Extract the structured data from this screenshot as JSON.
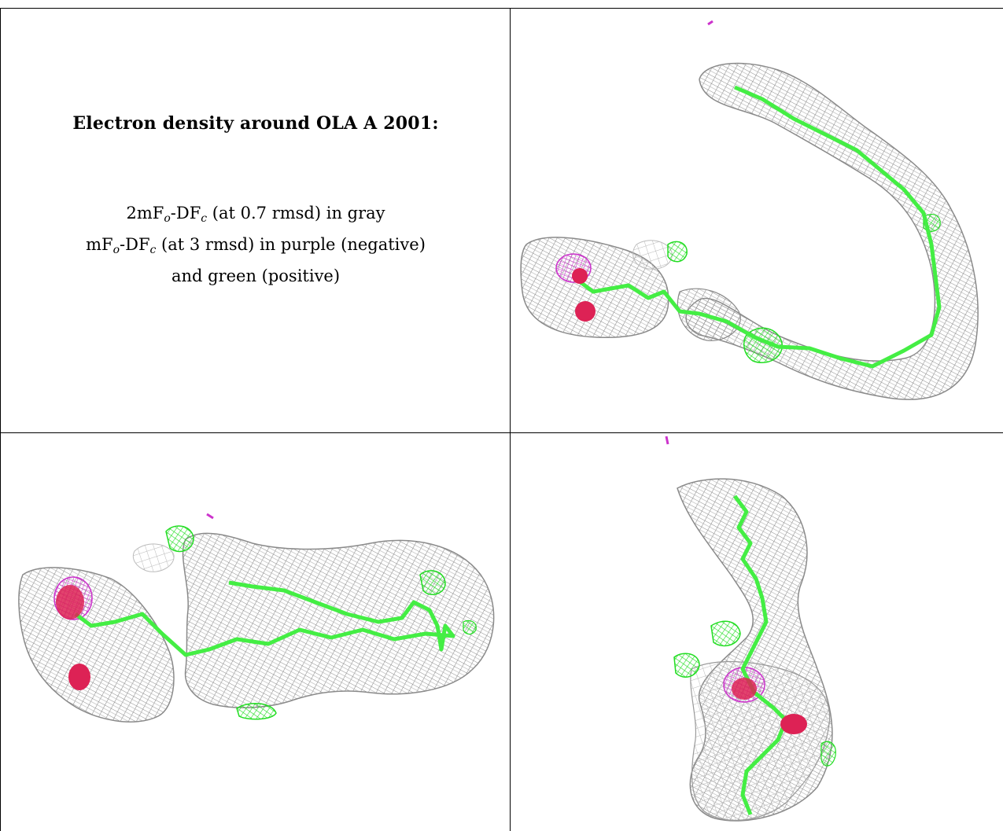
{
  "title": "Electron density around OLA A 2001:",
  "legend": {
    "line1": {
      "pre": "2mF",
      "sub1": "o",
      "mid": "-DF",
      "sub2": "c",
      "post": " (at 0.7 rmsd) in gray"
    },
    "line2": {
      "pre": "mF",
      "sub1": "o",
      "mid": "-DF",
      "sub2": "c",
      "post": " (at 3 rmsd) in purple (negative)"
    },
    "line3": "and green (positive)"
  },
  "colors": {
    "mesh_2fofc": "#8c8c8c",
    "mesh_positive": "#22dd22",
    "mesh_negative": "#cc33cc",
    "ligand_carbon": "#44ee44",
    "ligand_oxygen": "#dd2255",
    "grid": "#000000"
  },
  "panels": [
    {
      "id": "view-1",
      "ligand": "OLA A 2001"
    },
    {
      "id": "view-2",
      "ligand": "OLA A 2001"
    },
    {
      "id": "view-3",
      "ligand": "OLA A 2001"
    }
  ]
}
